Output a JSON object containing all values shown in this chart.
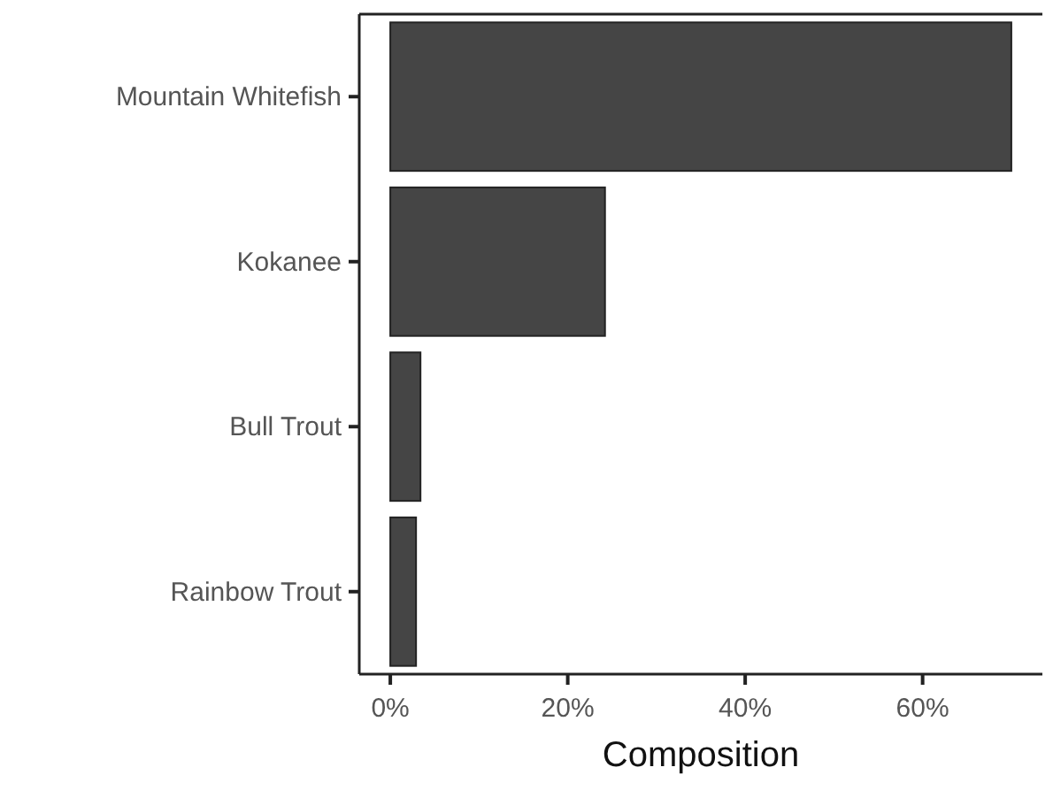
{
  "chart_data": {
    "type": "bar",
    "orientation": "horizontal",
    "xlabel": "Composition",
    "categories": [
      "Mountain Whitefish",
      "Kokanee",
      "Bull Trout",
      "Rainbow Trout"
    ],
    "values": [
      70.0,
      24.2,
      3.4,
      2.9
    ],
    "color": "#454545",
    "xlim": [
      -3.5,
      73.5
    ],
    "xticks": [
      {
        "value": 0,
        "label": "0%"
      },
      {
        "value": 20,
        "label": "20%"
      },
      {
        "value": 40,
        "label": "40%"
      },
      {
        "value": 60,
        "label": "60%"
      }
    ],
    "grid": false
  }
}
